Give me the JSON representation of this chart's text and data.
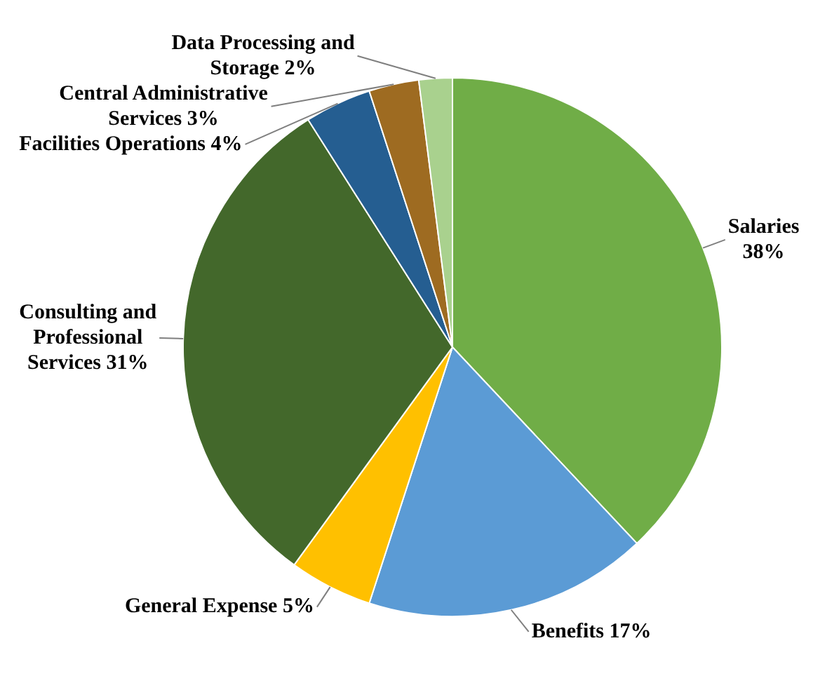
{
  "chart_data": {
    "type": "pie",
    "categories": [
      "Salaries",
      "Benefits",
      "General Expense",
      "Consulting and Professional Services",
      "Facilities Operations",
      "Central Administrative Services",
      "Data Processing and Storage"
    ],
    "values": [
      38,
      17,
      5,
      31,
      4,
      3,
      2
    ],
    "value_labels": [
      "38%",
      "17%",
      "5%",
      "31%",
      "4%",
      "3%",
      "2%"
    ],
    "colors": [
      "#70ad47",
      "#5b9bd5",
      "#ffc000",
      "#43682b",
      "#255e91",
      "#9e6b21",
      "#a9d18e"
    ],
    "legend": false
  }
}
